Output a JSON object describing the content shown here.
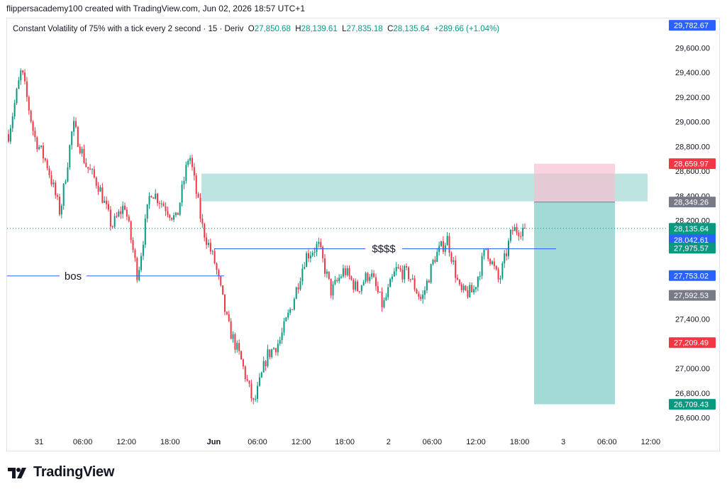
{
  "header": {
    "text": "flippersacademy100 created with TradingView.com, Jun 02, 2026 18:57 UTC+1"
  },
  "legend": {
    "symbol": "Constant Volatility of 75% with a tick every 2 second · 15 · Deriv",
    "o_label": "O",
    "o": "27,850.68",
    "h_label": "H",
    "h": "28,139.61",
    "l_label": "L",
    "l": "27,835.18",
    "c_label": "C",
    "c": "28,135.64",
    "change": "+289.66 (+1.04%)"
  },
  "brand": {
    "name": "TradingView"
  },
  "colors": {
    "up": "#089981",
    "down": "#f23645",
    "zone": "#b2dfdb",
    "target": "#26a69a",
    "stop": "#f8bbd0",
    "hline": "#2962ff",
    "label_blue": "#2962ff",
    "label_gray": "#787b86"
  },
  "chart_data": {
    "type": "candlestick",
    "title": "Constant Volatility of 75% with a tick every 2 second · 15 · Deriv",
    "ylim": [
      26500,
      29850
    ],
    "x_ticks": [
      "31",
      "06:00",
      "12:00",
      "18:00",
      "Jun",
      "06:00",
      "12:00",
      "18:00",
      "2",
      "06:00",
      "12:00",
      "18:00",
      "3",
      "06:00",
      "12:00"
    ],
    "y_ticks": [
      "29,600.00",
      "29,400.00",
      "29,200.00",
      "29,000.00",
      "28,800.00",
      "28,600.00",
      "28,400.00",
      "28,200.00",
      "27,400.00",
      "27,000.00",
      "26,800.00",
      "26,600.00"
    ],
    "y_tick_values": [
      29600,
      29400,
      29200,
      29000,
      28800,
      28600,
      28400,
      28200,
      27400,
      27000,
      26800,
      26600
    ],
    "price_path": [
      28900,
      29420,
      28880,
      28650,
      28260,
      28980,
      28650,
      28480,
      28150,
      28330,
      27750,
      28450,
      28330,
      28200,
      28750,
      28150,
      27850,
      27350,
      27070,
      26700,
      27100,
      27220,
      27530,
      27910,
      28000,
      27620,
      27800,
      27640,
      27780,
      27500,
      27800,
      27760,
      27550,
      27900,
      28050,
      27610,
      27620,
      27980,
      27700,
      28120,
      28135.64
    ],
    "annotations": {
      "bos_label": "bos",
      "bos_price": 27750,
      "liquidity_label": "$$$$",
      "liquidity_price": 27970,
      "demand_zone": [
        28355,
        28580
      ],
      "position": {
        "entry": 28349.26,
        "stop": 28659.97,
        "target": 26709.43
      }
    },
    "price_labels": [
      {
        "value": "29,782.67",
        "price": 29782.67,
        "style": "blue"
      },
      {
        "value": "28,659.97",
        "price": 28659.97,
        "style": "red"
      },
      {
        "value": "28,349.26",
        "price": 28349.26,
        "style": "gray"
      },
      {
        "value": "28,135.64",
        "extra": "02:31",
        "price": 28135.64,
        "style": "green"
      },
      {
        "value": "28,042.61",
        "price": 28042.61,
        "style": "blue"
      },
      {
        "value": "27,975.57",
        "price": 27975.57,
        "style": "green"
      },
      {
        "value": "27,753.02",
        "price": 27753.02,
        "style": "blue"
      },
      {
        "value": "27,592.53",
        "price": 27592.53,
        "style": "gray"
      },
      {
        "value": "27,209.49",
        "price": 27209.49,
        "style": "red"
      },
      {
        "value": "26,709.43",
        "price": 26709.43,
        "style": "green"
      }
    ]
  }
}
